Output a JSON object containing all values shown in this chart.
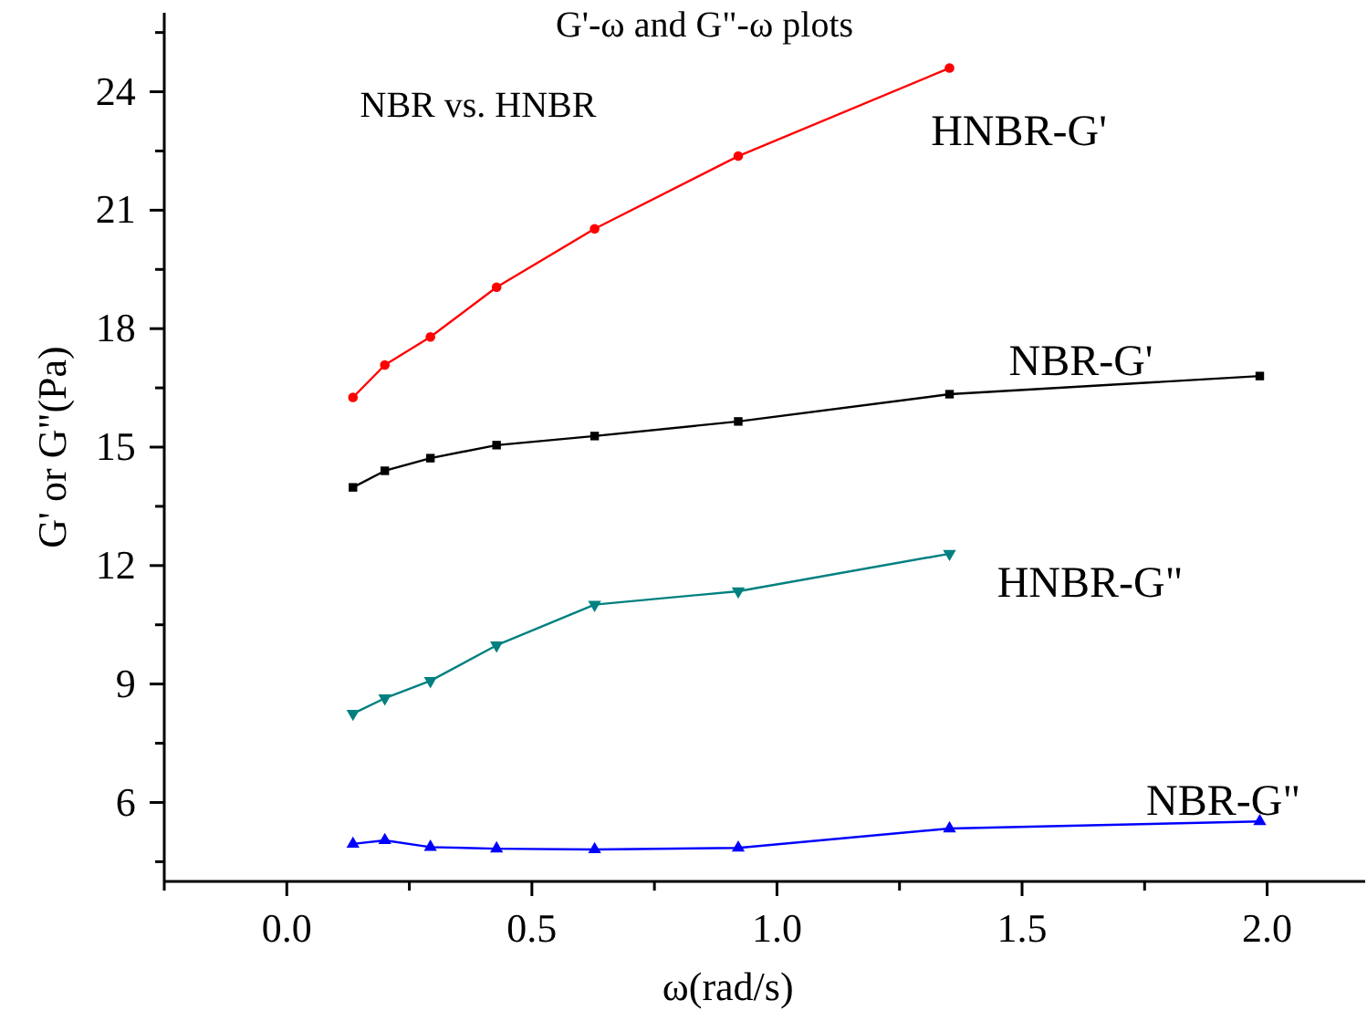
{
  "chart_data": {
    "type": "line",
    "title": "G'-ω and G\"-ω plots",
    "subtitle": "NBR vs. HNBR",
    "xlabel": "ω(rad/s)",
    "ylabel": "G' or G\"(Pa)",
    "x": [
      0.135,
      0.2,
      0.293,
      0.428,
      0.628,
      0.921,
      1.352,
      1.985
    ],
    "series": [
      {
        "name": "HNBR-G'",
        "color": "#ff0000",
        "marker": "circle",
        "values": [
          16.26,
          17.08,
          17.79,
          19.05,
          20.53,
          22.37,
          24.6,
          null
        ]
      },
      {
        "name": "NBR-G'",
        "color": "#000000",
        "marker": "square",
        "values": [
          13.98,
          14.4,
          14.72,
          15.05,
          15.28,
          15.65,
          16.34,
          16.8
        ]
      },
      {
        "name": "HNBR-G\"",
        "color": "#008080",
        "marker": "triangle",
        "values": [
          8.25,
          8.64,
          9.08,
          9.98,
          11.01,
          11.35,
          12.3,
          null
        ]
      },
      {
        "name": "NBR-G\"",
        "color": "#0000ff",
        "marker": "triangle",
        "values": [
          4.95,
          5.04,
          4.87,
          4.83,
          4.81,
          4.85,
          5.34,
          5.52
        ]
      }
    ],
    "xlim": [
      -0.25,
      2.2
    ],
    "xticks": [
      {
        "value": -0.25,
        "label": null
      },
      {
        "value": 0,
        "label": "0.0"
      },
      {
        "value": 0.25,
        "label": null
      },
      {
        "value": 0.5,
        "label": "0.5"
      },
      {
        "value": 0.75,
        "label": null
      },
      {
        "value": 1,
        "label": "1.0"
      },
      {
        "value": 1.25,
        "label": null
      },
      {
        "value": 1.5,
        "label": "1.5"
      },
      {
        "value": 1.75,
        "label": null
      },
      {
        "value": 2,
        "label": "2.0"
      }
    ],
    "ylim": [
      4,
      26
    ],
    "yticks": [
      {
        "value": 4.5,
        "label": null
      },
      6,
      {
        "value": 7.5,
        "label": null
      },
      9,
      {
        "value": 10.5,
        "label": null
      },
      12,
      {
        "value": 13.5,
        "label": null
      },
      15,
      {
        "value": 16.5,
        "label": null
      },
      18,
      {
        "value": 19.5,
        "label": null
      },
      21,
      {
        "value": 22.5,
        "label": null
      },
      24,
      {
        "value": 25.5,
        "label": null
      }
    ],
    "grid": false,
    "line_style": "solid"
  }
}
